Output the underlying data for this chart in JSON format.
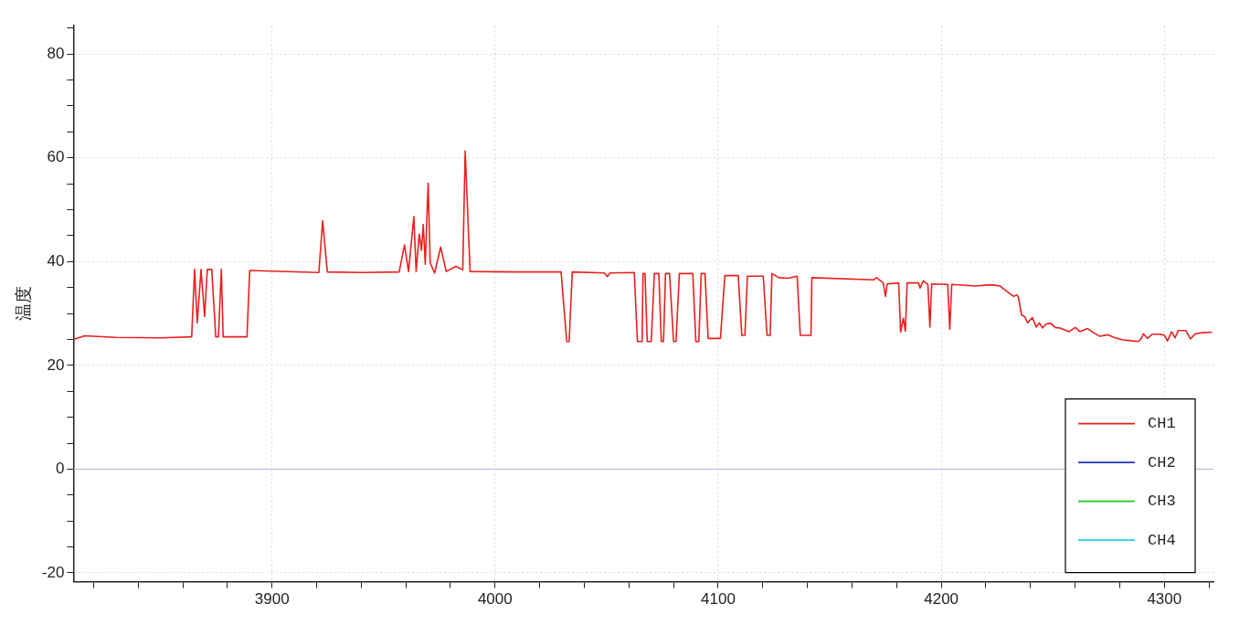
{
  "chart_data": {
    "type": "line",
    "ylabel": "温度",
    "xlim": [
      3811,
      4322
    ],
    "ylim": [
      -21.7,
      85.5
    ],
    "xticks": [
      {
        "value": 3820,
        "label": null
      },
      {
        "value": 3840,
        "label": null
      },
      {
        "value": 3860,
        "label": null
      },
      {
        "value": 3880,
        "label": null
      },
      3900,
      {
        "value": 3920,
        "label": null
      },
      {
        "value": 3940,
        "label": null
      },
      {
        "value": 3960,
        "label": null
      },
      {
        "value": 3980,
        "label": null
      },
      4000,
      {
        "value": 4020,
        "label": null
      },
      {
        "value": 4040,
        "label": null
      },
      {
        "value": 4060,
        "label": null
      },
      {
        "value": 4080,
        "label": null
      },
      4100,
      {
        "value": 4120,
        "label": null
      },
      {
        "value": 4140,
        "label": null
      },
      {
        "value": 4160,
        "label": null
      },
      {
        "value": 4180,
        "label": null
      },
      4200,
      {
        "value": 4220,
        "label": null
      },
      {
        "value": 4240,
        "label": null
      },
      {
        "value": 4260,
        "label": null
      },
      {
        "value": 4280,
        "label": null
      },
      4300,
      {
        "value": 4320,
        "label": null
      }
    ],
    "yticks": [
      -20,
      {
        "value": -15,
        "label": null
      },
      {
        "value": -10,
        "label": null
      },
      {
        "value": -5,
        "label": null
      },
      0,
      {
        "value": 5,
        "label": null
      },
      {
        "value": 10,
        "label": null
      },
      {
        "value": 15,
        "label": null
      },
      20,
      {
        "value": 25,
        "label": null
      },
      {
        "value": 30,
        "label": null
      },
      {
        "value": 35,
        "label": null
      },
      40,
      {
        "value": 45,
        "label": null
      },
      {
        "value": 50,
        "label": null
      },
      {
        "value": 55,
        "label": null
      },
      60,
      {
        "value": 65,
        "label": null
      },
      {
        "value": 70,
        "label": null
      },
      {
        "value": 75,
        "label": null
      },
      80,
      {
        "value": 85,
        "label": null
      }
    ],
    "grid": true,
    "legend": "bottom right",
    "marker": "none",
    "line_style": "solid",
    "ref_lines": [
      {
        "axis": "y",
        "value": 0,
        "color": "#b4b4dc"
      }
    ],
    "series": [
      {
        "name": "CH1",
        "color": "#e8201e",
        "x": [
          3811,
          3816,
          3830,
          3850,
          3864,
          3865.3,
          3866.5,
          3868.2,
          3869.8,
          3871,
          3873,
          3874.8,
          3876,
          3877.3,
          3878.1,
          3888.8,
          3890,
          3921,
          3922.7,
          3924.8,
          3940,
          3957,
          3959.4,
          3961.2,
          3963.6,
          3964.6,
          3966,
          3967,
          3967.8,
          3968.7,
          3970,
          3970.9,
          3972.9,
          3975.6,
          3978.1,
          3982.5,
          3985.5,
          3986.6,
          3988.8,
          4010,
          4029.6,
          4032.1,
          4033.2,
          4034.6,
          4049,
          4050.3,
          4051.5,
          4062.4,
          4063.8,
          4065.9,
          4066.3,
          4067.2,
          4068.2,
          4070,
          4071.4,
          4073.4,
          4074.5,
          4075.5,
          4076.4,
          4078.2,
          4080,
          4081.1,
          4082.6,
          4088.6,
          4090,
          4091.3,
          4092.4,
          4094.1,
          4095.5,
          4101,
          4103,
          4109,
          4110.6,
          4112,
          4113.1,
          4120.2,
          4121.9,
          4123.3,
          4124.1,
          4127.2,
          4131.3,
          4135.4,
          4136.8,
          4141.6,
          4142,
          4169.8,
          4171,
          4174,
          4175,
          4175.8,
          4180.9,
          4181.8,
          4183,
          4183.9,
          4184.7,
          4189.8,
          4190.5,
          4191.9,
          4194,
          4194.9,
          4195.7,
          4202.9,
          4203.8,
          4204.7,
          4215.3,
          4220.8,
          4223.6,
          4226.3,
          4230.4,
          4232.5,
          4233.9,
          4234.6,
          4236,
          4237.4,
          4238.7,
          4240.8,
          4242.6,
          4244,
          4245.3,
          4247,
          4249.1,
          4251.1,
          4253.2,
          4255.5,
          4257.3,
          4260.1,
          4262.1,
          4265.6,
          4268.3,
          4271.1,
          4274.5,
          4278,
          4281.4,
          4284.2,
          4288.3,
          4289.7,
          4290.6,
          4292.4,
          4294.5,
          4298,
          4300,
          4301.4,
          4303.2,
          4304.8,
          4306.2,
          4309.6,
          4311.7,
          4313.8,
          4317.2,
          4321.4
        ],
        "values": [
          25,
          25.7,
          25.4,
          25.3,
          25.5,
          38.5,
          28.2,
          38.5,
          29.4,
          38.5,
          38.5,
          25.5,
          25.5,
          38.5,
          25.5,
          25.5,
          38.3,
          37.9,
          47.9,
          38,
          37.9,
          38,
          43.2,
          38.1,
          48.7,
          38.1,
          45.3,
          42.2,
          47.2,
          39.5,
          55.1,
          39.8,
          37.8,
          42.8,
          38.1,
          39.1,
          38.4,
          61.3,
          38.1,
          38,
          38,
          24.6,
          24.6,
          38,
          37.8,
          37.1,
          37.8,
          37.9,
          24.6,
          24.6,
          37.7,
          37.7,
          24.6,
          24.6,
          37.7,
          37.7,
          24.6,
          24.6,
          37.7,
          37.7,
          24.6,
          24.6,
          37.7,
          37.7,
          24.6,
          24.6,
          37.7,
          37.7,
          25.2,
          25.2,
          37.3,
          37.3,
          25.8,
          25.8,
          37.2,
          37.2,
          25.8,
          25.8,
          37.7,
          36.9,
          36.8,
          37.2,
          25.8,
          25.8,
          36.9,
          36.5,
          36.9,
          35.9,
          33.3,
          35.7,
          35.9,
          26.4,
          29.1,
          26.6,
          35.9,
          35.9,
          34.9,
          36.3,
          35.6,
          27.4,
          35.7,
          35.6,
          27,
          35.6,
          35.3,
          35.5,
          35.5,
          35.3,
          33.9,
          33.3,
          33.6,
          33.1,
          29.7,
          29.4,
          28.2,
          29.2,
          27.4,
          28.2,
          27.2,
          28,
          28.1,
          27.3,
          27.2,
          26.8,
          26.5,
          27.3,
          26.5,
          27.1,
          26.3,
          25.6,
          25.9,
          25.3,
          24.9,
          24.8,
          24.6,
          25.2,
          26.1,
          25.2,
          26,
          26,
          25.8,
          24.7,
          26.5,
          25.3,
          26.7,
          26.7,
          25.1,
          26.1,
          26.3,
          26.4
        ]
      },
      {
        "name": "CH2",
        "color": "#1e32b4"
      },
      {
        "name": "CH3",
        "color": "#1ec81e"
      },
      {
        "name": "CH4",
        "color": "#1ed2e6"
      }
    ]
  }
}
